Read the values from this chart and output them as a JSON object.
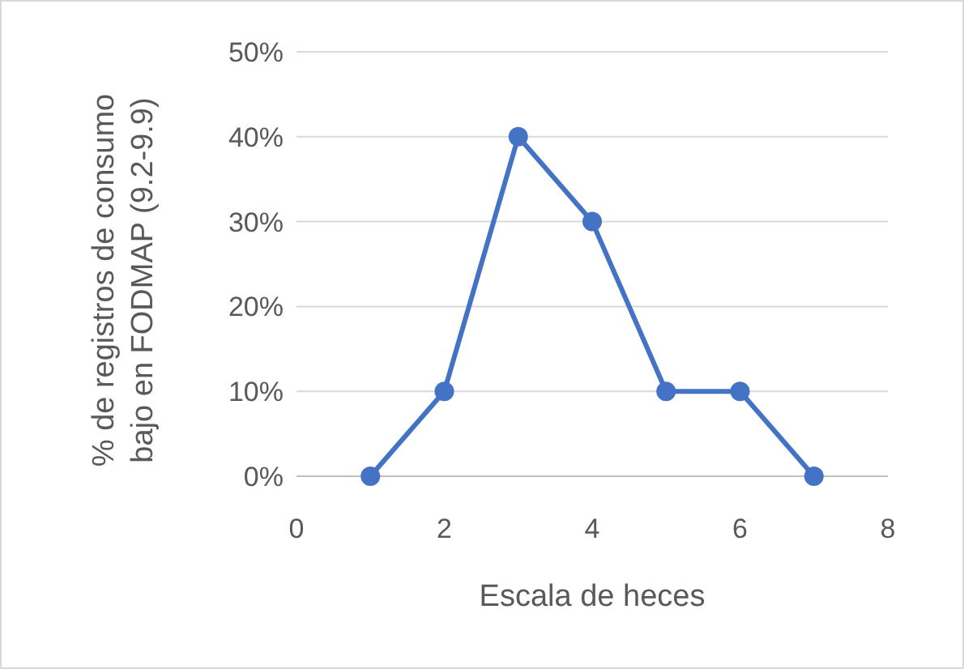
{
  "chart_data": {
    "type": "line",
    "xlabel": "Escala de heces",
    "ylabel": "% de registros de consumo bajo en FODMAP (9.2-9.9)",
    "x": [
      1,
      2,
      3,
      4,
      5,
      6,
      7
    ],
    "series": [
      {
        "color": "#4472c4",
        "values": [
          0,
          10,
          40,
          30,
          10,
          10,
          0
        ]
      }
    ],
    "xlim": [
      0,
      8
    ],
    "xticks": [
      0,
      2,
      4,
      6,
      8
    ],
    "ylim": [
      0,
      50
    ],
    "yticks": [
      {
        "value": 0,
        "label": "0%"
      },
      {
        "value": 10,
        "label": "10%"
      },
      {
        "value": 20,
        "label": "20%"
      },
      {
        "value": 30,
        "label": "30%"
      },
      {
        "value": 40,
        "label": "40%"
      },
      {
        "value": 50,
        "label": "50%"
      }
    ],
    "grid": "y",
    "marker": "circle",
    "line_style": "solid"
  }
}
